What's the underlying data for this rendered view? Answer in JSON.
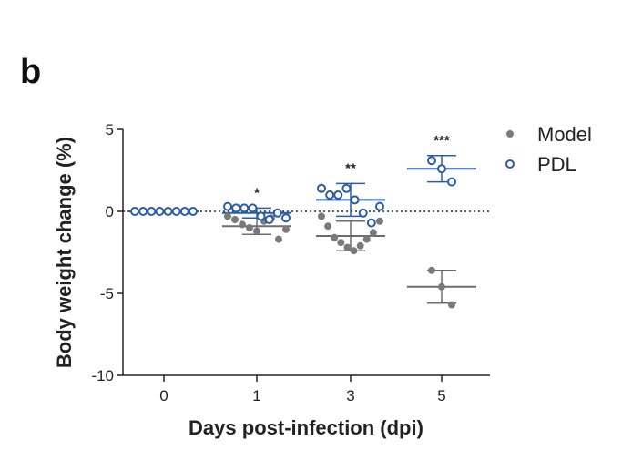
{
  "panel_label": "b",
  "chart_data": {
    "type": "scatter",
    "title": "",
    "xlabel": "Days post-infection (dpi)",
    "ylabel": "Body weight change (%)",
    "categories": [
      "0",
      "1",
      "3",
      "5"
    ],
    "ylim": [
      -10,
      5
    ],
    "yticks": [
      -10,
      -5,
      0,
      5
    ],
    "reference_line": 0,
    "grid": false,
    "legend_position": "top-right",
    "significance": [
      "",
      "*",
      "**",
      "***"
    ],
    "series": [
      {
        "name": "Model",
        "marker": "filled-circle",
        "color": "#7a7a7a",
        "points": [
          [
            0,
            0
          ],
          [
            0,
            0
          ],
          [
            0,
            0
          ],
          [
            0,
            0
          ],
          [
            0,
            0
          ],
          [
            0,
            0
          ],
          [
            0,
            0
          ],
          [
            0,
            0
          ],
          [
            1,
            -0.3
          ],
          [
            1,
            -0.5
          ],
          [
            1,
            -0.8
          ],
          [
            1,
            -1.0
          ],
          [
            1,
            -1.2
          ],
          [
            1,
            -0.6
          ],
          [
            1,
            -0.4
          ],
          [
            1,
            -1.7
          ],
          [
            1,
            -1.1
          ],
          [
            3,
            -0.3
          ],
          [
            3,
            -0.9
          ],
          [
            3,
            -1.6
          ],
          [
            3,
            -1.9
          ],
          [
            3,
            -2.2
          ],
          [
            3,
            -2.4
          ],
          [
            3,
            -2.1
          ],
          [
            3,
            -1.7
          ],
          [
            3,
            -1.3
          ],
          [
            3,
            -0.6
          ],
          [
            5,
            -3.6
          ],
          [
            5,
            -4.6
          ],
          [
            5,
            -5.7
          ]
        ],
        "mean": [
          0,
          -0.9,
          -1.5,
          -4.6
        ],
        "error": [
          0,
          0.5,
          0.9,
          1.0
        ]
      },
      {
        "name": "PDL",
        "marker": "open-circle",
        "color": "#2a5ca8",
        "points": [
          [
            0,
            0
          ],
          [
            0,
            0
          ],
          [
            0,
            0
          ],
          [
            0,
            0
          ],
          [
            0,
            0
          ],
          [
            0,
            0
          ],
          [
            0,
            0
          ],
          [
            0,
            0
          ],
          [
            1,
            0.3
          ],
          [
            1,
            0.2
          ],
          [
            1,
            0.2
          ],
          [
            1,
            0.2
          ],
          [
            1,
            -0.3
          ],
          [
            1,
            -0.5
          ],
          [
            1,
            -0.1
          ],
          [
            1,
            -0.4
          ],
          [
            3,
            1.4
          ],
          [
            3,
            1.0
          ],
          [
            3,
            1.0
          ],
          [
            3,
            1.4
          ],
          [
            3,
            0.7
          ],
          [
            3,
            -0.1
          ],
          [
            3,
            -0.7
          ],
          [
            3,
            0.3
          ],
          [
            5,
            3.1
          ],
          [
            5,
            2.6
          ],
          [
            5,
            1.8
          ]
        ],
        "mean": [
          0,
          -0.1,
          0.7,
          2.6
        ],
        "error": [
          0,
          0.3,
          1.0,
          0.8
        ]
      }
    ]
  }
}
